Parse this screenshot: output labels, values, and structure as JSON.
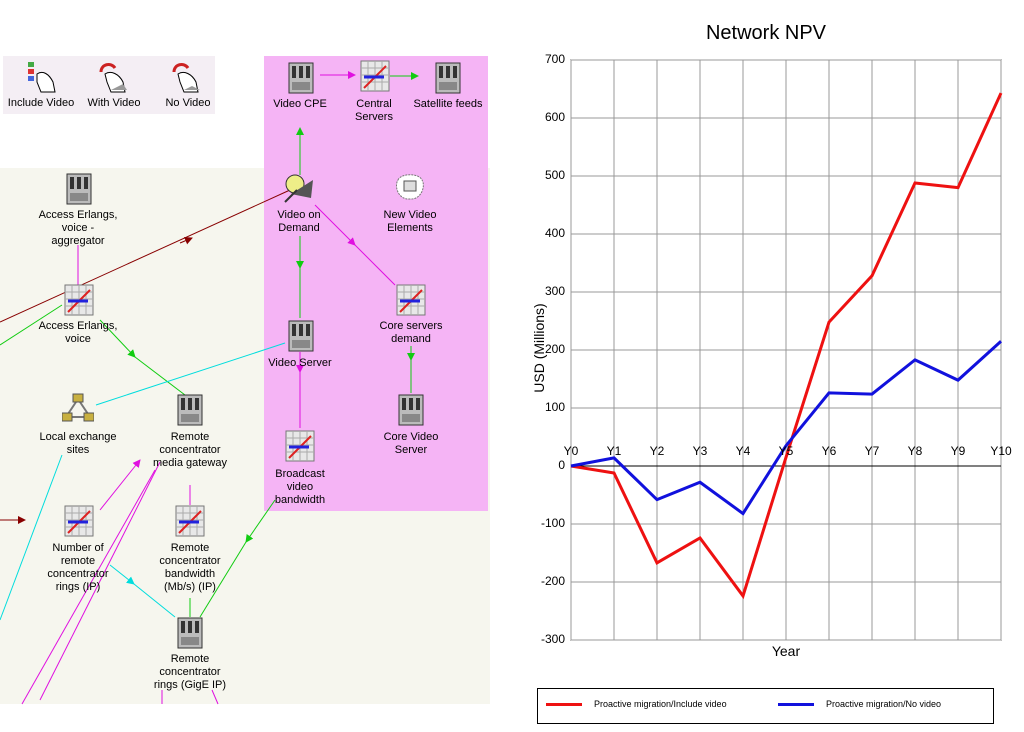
{
  "toolbar": {
    "include_video": "Include Video",
    "with_video": "With Video",
    "no_video": "No Video"
  },
  "nodes": {
    "video_cpe": "Video CPE",
    "central_servers": "Central Servers",
    "satellite_feeds": "Satellite feeds",
    "access_aggregator": "Access Erlangs, voice - aggregator",
    "video_on_demand": "Video on Demand",
    "new_video_elements": "New Video Elements",
    "access_voice": "Access Erlangs, voice",
    "core_servers_demand": "Core servers demand",
    "video_server": "Video Server",
    "local_exchange_sites": "Local exchange sites",
    "remote_media_gateway": "Remote concentrator media gateway",
    "core_video_server": "Core Video Server",
    "broadcast_bandwidth": "Broadcast video bandwidth",
    "remote_rings_ip": "Number of remote concentrator rings (IP)",
    "remote_bandwidth": "Remote concentrator bandwidth (Mb/s) (IP)",
    "remote_rings_gige": "Remote concentrator rings (GigE IP)"
  },
  "colors": {
    "include": "#ee1111",
    "no_video": "#1111dd",
    "highlight": "#f5b4f5",
    "canvas": "#f6f6ee"
  },
  "chart_data": {
    "type": "line",
    "title": "Network NPV",
    "xlabel": "Year",
    "ylabel": "USD (Millions)",
    "categories": [
      "Y0",
      "Y1",
      "Y2",
      "Y3",
      "Y4",
      "Y5",
      "Y6",
      "Y7",
      "Y8",
      "Y9",
      "Y10"
    ],
    "ylim": [
      -300,
      700
    ],
    "yticks": [
      -300,
      -200,
      -100,
      0,
      100,
      200,
      300,
      400,
      500,
      600,
      700
    ],
    "grid": true,
    "legend_position": "bottom",
    "series": [
      {
        "name": "Proactive migration/Include video",
        "color": "#ee1111",
        "values": [
          0,
          -12,
          -167,
          -124,
          -224,
          15,
          248,
          328,
          488,
          480,
          643
        ]
      },
      {
        "name": "Proactive migration/No video",
        "color": "#1111dd",
        "values": [
          0,
          14,
          -58,
          -28,
          -82,
          35,
          126,
          124,
          183,
          148,
          215
        ]
      }
    ]
  }
}
